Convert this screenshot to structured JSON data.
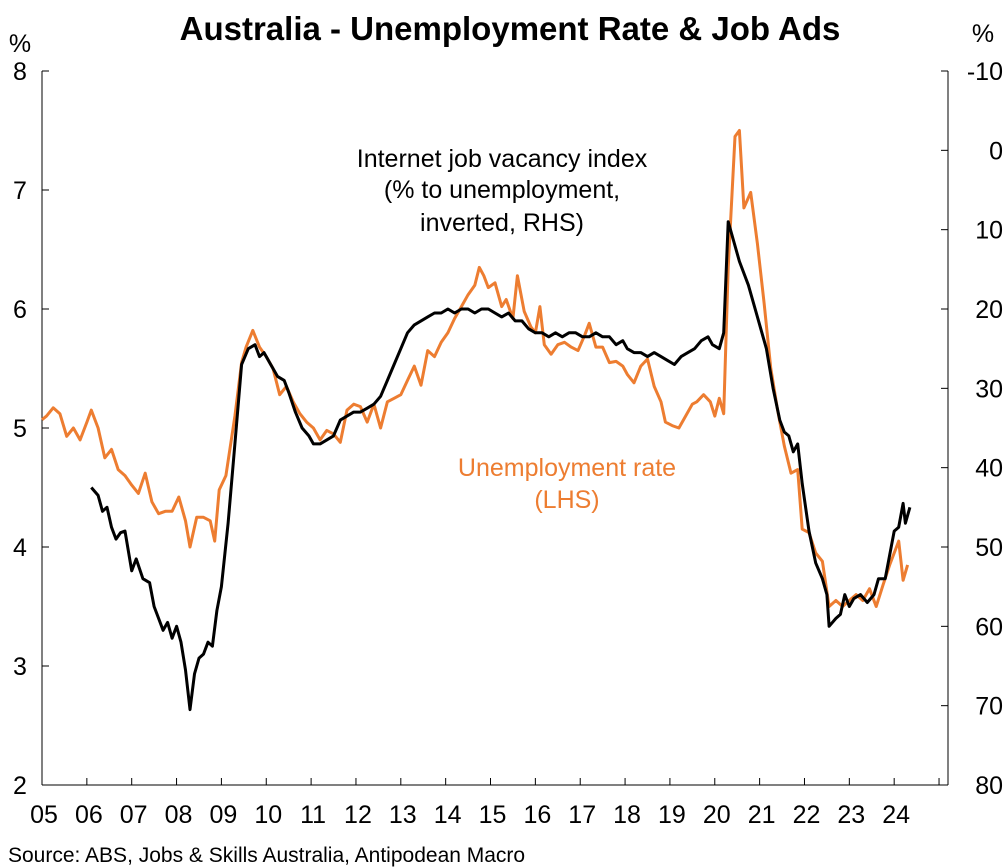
{
  "chart_data": {
    "type": "line",
    "title": "Australia - Unemployment Rate & Job Ads",
    "left_axis": {
      "unit": "%",
      "ylim": [
        2,
        8
      ],
      "ticks": [
        "8",
        "7",
        "6",
        "5",
        "4",
        "3",
        "2"
      ]
    },
    "right_axis": {
      "unit": "%",
      "ylim": [
        -10,
        80
      ],
      "inverted": true,
      "ticks": [
        "-10",
        "0",
        "10",
        "20",
        "30",
        "40",
        "50",
        "60",
        "70",
        "80"
      ]
    },
    "x_axis": {
      "range": [
        2005,
        2025.2
      ],
      "tick_labels": [
        "05",
        "06",
        "07",
        "08",
        "09",
        "10",
        "11",
        "12",
        "13",
        "14",
        "15",
        "16",
        "17",
        "18",
        "19",
        "20",
        "21",
        "22",
        "23",
        "24"
      ]
    },
    "annotations": {
      "vacancy": [
        "Internet job vacancy index",
        "(% to unemployment,",
        "inverted, RHS)"
      ],
      "unemployment": [
        "Unemployment rate",
        "(LHS)"
      ]
    },
    "source": "Source: ABS, Jobs & Skills Australia, Antipodean Macro",
    "colors": {
      "unemployment": "#ED7D31",
      "vacancy": "#000000"
    },
    "series": [
      {
        "axis": "left",
        "points": [
          [
            2005.0,
            5.07
          ],
          [
            2005.1,
            5.1
          ],
          [
            2005.25,
            5.17
          ],
          [
            2005.4,
            5.12
          ],
          [
            2005.55,
            4.93
          ],
          [
            2005.7,
            5.0
          ],
          [
            2005.85,
            4.9
          ],
          [
            2006.0,
            5.05
          ],
          [
            2006.1,
            5.15
          ],
          [
            2006.25,
            5.0
          ],
          [
            2006.4,
            4.75
          ],
          [
            2006.55,
            4.82
          ],
          [
            2006.7,
            4.65
          ],
          [
            2006.85,
            4.6
          ],
          [
            2007.0,
            4.52
          ],
          [
            2007.15,
            4.45
          ],
          [
            2007.3,
            4.62
          ],
          [
            2007.45,
            4.38
          ],
          [
            2007.6,
            4.28
          ],
          [
            2007.75,
            4.3
          ],
          [
            2007.9,
            4.3
          ],
          [
            2008.05,
            4.42
          ],
          [
            2008.2,
            4.22
          ],
          [
            2008.3,
            4.0
          ],
          [
            2008.45,
            4.25
          ],
          [
            2008.6,
            4.25
          ],
          [
            2008.75,
            4.22
          ],
          [
            2008.85,
            4.05
          ],
          [
            2008.95,
            4.48
          ],
          [
            2009.1,
            4.6
          ],
          [
            2009.3,
            5.1
          ],
          [
            2009.45,
            5.55
          ],
          [
            2009.55,
            5.68
          ],
          [
            2009.7,
            5.82
          ],
          [
            2009.85,
            5.68
          ],
          [
            2010.0,
            5.6
          ],
          [
            2010.15,
            5.5
          ],
          [
            2010.3,
            5.28
          ],
          [
            2010.45,
            5.35
          ],
          [
            2010.6,
            5.22
          ],
          [
            2010.75,
            5.12
          ],
          [
            2010.9,
            5.05
          ],
          [
            2011.05,
            5.0
          ],
          [
            2011.2,
            4.9
          ],
          [
            2011.35,
            4.98
          ],
          [
            2011.5,
            4.95
          ],
          [
            2011.65,
            4.88
          ],
          [
            2011.8,
            5.15
          ],
          [
            2011.95,
            5.2
          ],
          [
            2012.1,
            5.18
          ],
          [
            2012.25,
            5.05
          ],
          [
            2012.4,
            5.2
          ],
          [
            2012.55,
            5.0
          ],
          [
            2012.7,
            5.22
          ],
          [
            2012.85,
            5.25
          ],
          [
            2013.0,
            5.28
          ],
          [
            2013.15,
            5.4
          ],
          [
            2013.3,
            5.52
          ],
          [
            2013.45,
            5.36
          ],
          [
            2013.6,
            5.65
          ],
          [
            2013.75,
            5.6
          ],
          [
            2013.9,
            5.72
          ],
          [
            2014.05,
            5.8
          ],
          [
            2014.2,
            5.92
          ],
          [
            2014.35,
            6.02
          ],
          [
            2014.5,
            6.12
          ],
          [
            2014.65,
            6.2
          ],
          [
            2014.75,
            6.35
          ],
          [
            2014.85,
            6.28
          ],
          [
            2014.95,
            6.18
          ],
          [
            2015.1,
            6.22
          ],
          [
            2015.25,
            6.02
          ],
          [
            2015.35,
            6.08
          ],
          [
            2015.5,
            5.92
          ],
          [
            2015.6,
            6.28
          ],
          [
            2015.75,
            5.98
          ],
          [
            2015.9,
            5.85
          ],
          [
            2016.0,
            5.8
          ],
          [
            2016.1,
            6.02
          ],
          [
            2016.2,
            5.7
          ],
          [
            2016.35,
            5.62
          ],
          [
            2016.5,
            5.7
          ],
          [
            2016.65,
            5.72
          ],
          [
            2016.8,
            5.68
          ],
          [
            2016.95,
            5.65
          ],
          [
            2017.1,
            5.78
          ],
          [
            2017.2,
            5.88
          ],
          [
            2017.35,
            5.68
          ],
          [
            2017.5,
            5.68
          ],
          [
            2017.65,
            5.55
          ],
          [
            2017.8,
            5.56
          ],
          [
            2017.95,
            5.52
          ],
          [
            2018.05,
            5.45
          ],
          [
            2018.2,
            5.38
          ],
          [
            2018.35,
            5.52
          ],
          [
            2018.5,
            5.58
          ],
          [
            2018.65,
            5.35
          ],
          [
            2018.8,
            5.22
          ],
          [
            2018.9,
            5.05
          ],
          [
            2019.05,
            5.02
          ],
          [
            2019.2,
            5.0
          ],
          [
            2019.35,
            5.1
          ],
          [
            2019.5,
            5.2
          ],
          [
            2019.6,
            5.22
          ],
          [
            2019.75,
            5.28
          ],
          [
            2019.9,
            5.22
          ],
          [
            2020.0,
            5.1
          ],
          [
            2020.1,
            5.25
          ],
          [
            2020.2,
            5.12
          ],
          [
            2020.3,
            6.35
          ],
          [
            2020.45,
            7.45
          ],
          [
            2020.55,
            7.5
          ],
          [
            2020.65,
            6.85
          ],
          [
            2020.8,
            6.98
          ],
          [
            2020.95,
            6.55
          ],
          [
            2021.1,
            6.05
          ],
          [
            2021.25,
            5.5
          ],
          [
            2021.4,
            5.15
          ],
          [
            2021.55,
            4.85
          ],
          [
            2021.7,
            4.62
          ],
          [
            2021.85,
            4.65
          ],
          [
            2021.95,
            4.15
          ],
          [
            2022.1,
            4.12
          ],
          [
            2022.25,
            3.95
          ],
          [
            2022.4,
            3.88
          ],
          [
            2022.55,
            3.5
          ],
          [
            2022.7,
            3.55
          ],
          [
            2022.85,
            3.5
          ],
          [
            2023.0,
            3.55
          ],
          [
            2023.15,
            3.6
          ],
          [
            2023.3,
            3.55
          ],
          [
            2023.45,
            3.65
          ],
          [
            2023.6,
            3.5
          ],
          [
            2023.75,
            3.68
          ],
          [
            2023.9,
            3.85
          ],
          [
            2024.0,
            3.95
          ],
          [
            2024.1,
            4.05
          ],
          [
            2024.2,
            3.72
          ],
          [
            2024.3,
            3.85
          ]
        ]
      },
      {
        "axis": "right",
        "points": [
          [
            2006.1,
            42.5
          ],
          [
            2006.25,
            43.5
          ],
          [
            2006.35,
            45.5
          ],
          [
            2006.45,
            45.0
          ],
          [
            2006.55,
            47.5
          ],
          [
            2006.65,
            49.0
          ],
          [
            2006.75,
            48.2
          ],
          [
            2006.85,
            48.0
          ],
          [
            2007.0,
            53.0
          ],
          [
            2007.1,
            51.5
          ],
          [
            2007.25,
            54.0
          ],
          [
            2007.4,
            54.5
          ],
          [
            2007.5,
            57.5
          ],
          [
            2007.6,
            59.0
          ],
          [
            2007.7,
            60.5
          ],
          [
            2007.8,
            59.5
          ],
          [
            2007.9,
            61.5
          ],
          [
            2008.0,
            60.0
          ],
          [
            2008.1,
            62.0
          ],
          [
            2008.2,
            65.5
          ],
          [
            2008.3,
            70.5
          ],
          [
            2008.4,
            66.0
          ],
          [
            2008.5,
            64.0
          ],
          [
            2008.6,
            63.5
          ],
          [
            2008.7,
            62.0
          ],
          [
            2008.8,
            62.5
          ],
          [
            2008.9,
            58.0
          ],
          [
            2009.0,
            55.0
          ],
          [
            2009.15,
            47.0
          ],
          [
            2009.3,
            37.0
          ],
          [
            2009.45,
            27.0
          ],
          [
            2009.6,
            25.0
          ],
          [
            2009.75,
            24.5
          ],
          [
            2009.85,
            26.0
          ],
          [
            2009.95,
            25.5
          ],
          [
            2010.1,
            27.0
          ],
          [
            2010.25,
            28.5
          ],
          [
            2010.4,
            29.0
          ],
          [
            2010.5,
            30.5
          ],
          [
            2010.65,
            33.0
          ],
          [
            2010.8,
            35.0
          ],
          [
            2010.95,
            36.0
          ],
          [
            2011.05,
            37.0
          ],
          [
            2011.2,
            37.0
          ],
          [
            2011.35,
            36.5
          ],
          [
            2011.5,
            36.0
          ],
          [
            2011.65,
            34.0
          ],
          [
            2011.8,
            33.5
          ],
          [
            2011.95,
            33.0
          ],
          [
            2012.1,
            33.0
          ],
          [
            2012.25,
            32.5
          ],
          [
            2012.4,
            32.0
          ],
          [
            2012.55,
            31.0
          ],
          [
            2012.7,
            29.0
          ],
          [
            2012.85,
            27.0
          ],
          [
            2013.0,
            25.0
          ],
          [
            2013.15,
            23.0
          ],
          [
            2013.3,
            22.0
          ],
          [
            2013.45,
            21.5
          ],
          [
            2013.6,
            21.0
          ],
          [
            2013.75,
            20.5
          ],
          [
            2013.9,
            20.5
          ],
          [
            2014.05,
            20.0
          ],
          [
            2014.2,
            20.5
          ],
          [
            2014.35,
            20.0
          ],
          [
            2014.5,
            20.0
          ],
          [
            2014.65,
            20.5
          ],
          [
            2014.8,
            20.0
          ],
          [
            2014.95,
            20.0
          ],
          [
            2015.1,
            20.5
          ],
          [
            2015.25,
            21.0
          ],
          [
            2015.4,
            20.5
          ],
          [
            2015.55,
            21.5
          ],
          [
            2015.7,
            21.5
          ],
          [
            2015.85,
            22.5
          ],
          [
            2016.0,
            23.0
          ],
          [
            2016.15,
            23.0
          ],
          [
            2016.3,
            23.5
          ],
          [
            2016.45,
            23.0
          ],
          [
            2016.6,
            23.5
          ],
          [
            2016.75,
            23.0
          ],
          [
            2016.9,
            23.0
          ],
          [
            2017.05,
            23.5
          ],
          [
            2017.2,
            23.5
          ],
          [
            2017.35,
            23.0
          ],
          [
            2017.5,
            23.5
          ],
          [
            2017.65,
            23.5
          ],
          [
            2017.8,
            24.5
          ],
          [
            2017.95,
            24.0
          ],
          [
            2018.05,
            25.0
          ],
          [
            2018.2,
            25.5
          ],
          [
            2018.35,
            25.5
          ],
          [
            2018.5,
            26.0
          ],
          [
            2018.65,
            25.5
          ],
          [
            2018.8,
            26.0
          ],
          [
            2018.95,
            26.5
          ],
          [
            2019.1,
            27.0
          ],
          [
            2019.25,
            26.0
          ],
          [
            2019.4,
            25.5
          ],
          [
            2019.55,
            25.0
          ],
          [
            2019.7,
            24.0
          ],
          [
            2019.85,
            23.5
          ],
          [
            2019.95,
            24.5
          ],
          [
            2020.1,
            25.0
          ],
          [
            2020.2,
            23.0
          ],
          [
            2020.3,
            9.0
          ],
          [
            2020.4,
            11.0
          ],
          [
            2020.55,
            14.0
          ],
          [
            2020.75,
            17.0
          ],
          [
            2020.95,
            21.0
          ],
          [
            2021.15,
            25.0
          ],
          [
            2021.3,
            30.0
          ],
          [
            2021.45,
            34.0
          ],
          [
            2021.55,
            35.5
          ],
          [
            2021.65,
            36.0
          ],
          [
            2021.75,
            38.0
          ],
          [
            2021.85,
            37.0
          ],
          [
            2021.95,
            42.0
          ],
          [
            2022.1,
            48.0
          ],
          [
            2022.25,
            52.0
          ],
          [
            2022.4,
            54.0
          ],
          [
            2022.5,
            56.0
          ],
          [
            2022.55,
            60.0
          ],
          [
            2022.7,
            59.0
          ],
          [
            2022.8,
            58.5
          ],
          [
            2022.9,
            56.0
          ],
          [
            2023.0,
            57.5
          ],
          [
            2023.1,
            56.5
          ],
          [
            2023.25,
            56.0
          ],
          [
            2023.4,
            57.0
          ],
          [
            2023.55,
            56.0
          ],
          [
            2023.65,
            54.0
          ],
          [
            2023.8,
            54.0
          ],
          [
            2023.9,
            51.0
          ],
          [
            2024.0,
            48.0
          ],
          [
            2024.1,
            47.5
          ],
          [
            2024.2,
            44.5
          ],
          [
            2024.25,
            47.0
          ],
          [
            2024.35,
            45.0
          ]
        ]
      }
    ]
  }
}
